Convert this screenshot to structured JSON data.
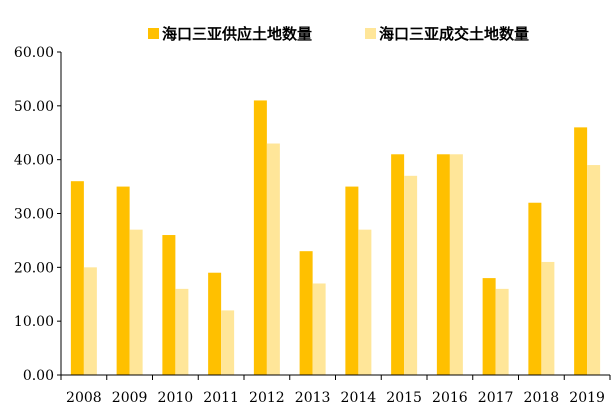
{
  "chart_data": {
    "type": "bar",
    "categories": [
      "2008",
      "2009",
      "2010",
      "2011",
      "2012",
      "2013",
      "2014",
      "2015",
      "2016",
      "2017",
      "2018",
      "2019"
    ],
    "series": [
      {
        "name": "海口三亚供应土地数量",
        "values": [
          36,
          35,
          26,
          19,
          51,
          23,
          35,
          41,
          41,
          18,
          32,
          46
        ],
        "color": "#FFC000"
      },
      {
        "name": "海口三亚成交土地数量",
        "values": [
          20,
          27,
          16,
          12,
          43,
          17,
          27,
          37,
          41,
          16,
          21,
          39
        ],
        "color": "#FFE699"
      }
    ],
    "y_ticks": [
      "0.00",
      "10.00",
      "20.00",
      "30.00",
      "40.00",
      "50.00",
      "60.00"
    ],
    "ylim": [
      0,
      60
    ],
    "grid": false,
    "legend_position": "top"
  }
}
